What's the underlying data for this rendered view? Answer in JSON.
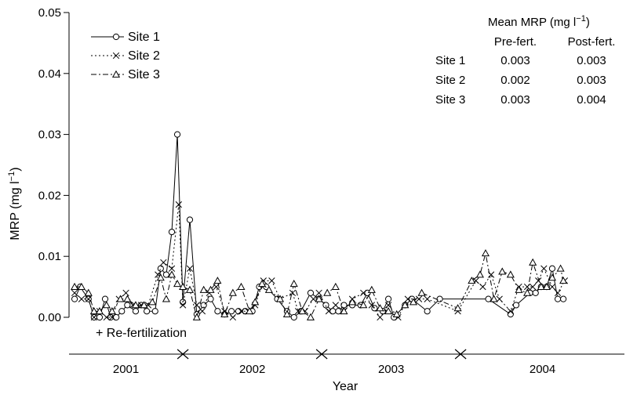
{
  "chart_data": {
    "type": "line",
    "ylabel": "MRP (mg l",
    "ylabel_sup": "−1",
    "ylabel_close": ")",
    "xlabel": "Year",
    "ylim": [
      0,
      0.05
    ],
    "yticks": [
      "0.00",
      "0.01",
      "0.02",
      "0.03",
      "0.04",
      "0.05"
    ],
    "ytick_values": [
      0,
      0.01,
      0.02,
      0.03,
      0.04,
      0.05
    ],
    "year_labels": [
      "2001",
      "2002",
      "2003",
      "2004"
    ],
    "x_range": [
      2000.68,
      2004.68
    ],
    "year_boundaries": [
      2001.5,
      2002.5,
      2003.5
    ],
    "annotation": "+ Re-fertilization",
    "grid": false,
    "legend_placement": "top-left",
    "series": [
      {
        "name": "Site 1",
        "marker": "circle",
        "line": "solid",
        "points": [
          [
            2000.72,
            0.003
          ],
          [
            2000.76,
            0.005
          ],
          [
            2000.82,
            0.003
          ],
          [
            2000.86,
            0.0
          ],
          [
            2000.9,
            0.0
          ],
          [
            2000.94,
            0.003
          ],
          [
            2000.98,
            0.0
          ],
          [
            2001.02,
            0.0
          ],
          [
            2001.06,
            0.001
          ],
          [
            2001.1,
            0.002
          ],
          [
            2001.16,
            0.001
          ],
          [
            2001.2,
            0.002
          ],
          [
            2001.24,
            0.001
          ],
          [
            2001.3,
            0.001
          ],
          [
            2001.34,
            0.008
          ],
          [
            2001.38,
            0.007
          ],
          [
            2001.42,
            0.014
          ],
          [
            2001.46,
            0.03
          ],
          [
            2001.5,
            0.0025
          ],
          [
            2001.55,
            0.016
          ],
          [
            2001.6,
            0.0005
          ],
          [
            2001.65,
            0.002
          ],
          [
            2001.7,
            0.003
          ],
          [
            2001.75,
            0.001
          ],
          [
            2001.8,
            0.0005
          ],
          [
            2001.85,
            0.001
          ],
          [
            2001.9,
            0.001
          ],
          [
            2001.95,
            0.001
          ],
          [
            2002.0,
            0.001
          ],
          [
            2002.05,
            0.005
          ],
          [
            2002.1,
            0.005
          ],
          [
            2002.18,
            0.003
          ],
          [
            2002.25,
            0.001
          ],
          [
            2002.3,
            0.0
          ],
          [
            2002.35,
            0.001
          ],
          [
            2002.42,
            0.004
          ],
          [
            2002.48,
            0.003
          ],
          [
            2002.53,
            0.002
          ],
          [
            2002.58,
            0.001
          ],
          [
            2002.62,
            0.001
          ],
          [
            2002.66,
            0.002
          ],
          [
            2002.72,
            0.002
          ],
          [
            2002.78,
            0.002
          ],
          [
            2002.83,
            0.004
          ],
          [
            2002.88,
            0.0015
          ],
          [
            2002.94,
            0.001
          ],
          [
            2002.98,
            0.003
          ],
          [
            2003.02,
            0.0
          ],
          [
            2003.1,
            0.002
          ],
          [
            2003.15,
            0.003
          ],
          [
            2003.26,
            0.001
          ],
          [
            2003.35,
            0.003
          ],
          [
            2003.7,
            0.003
          ],
          [
            2003.86,
            0.0005
          ],
          [
            2003.9,
            0.002
          ],
          [
            2004.0,
            0.004
          ],
          [
            2004.04,
            0.004
          ],
          [
            2004.08,
            0.005
          ],
          [
            2004.12,
            0.005
          ],
          [
            2004.16,
            0.008
          ],
          [
            2004.2,
            0.003
          ],
          [
            2004.24,
            0.003
          ]
        ]
      },
      {
        "name": "Site 2",
        "marker": "cross",
        "line": "dotted",
        "points": [
          [
            2000.72,
            0.004
          ],
          [
            2000.77,
            0.003
          ],
          [
            2000.82,
            0.003
          ],
          [
            2000.86,
            0.0
          ],
          [
            2000.9,
            0.001
          ],
          [
            2000.95,
            0.0
          ],
          [
            2000.99,
            0.0
          ],
          [
            2001.04,
            0.003
          ],
          [
            2001.09,
            0.004
          ],
          [
            2001.14,
            0.002
          ],
          [
            2001.2,
            0.002
          ],
          [
            2001.25,
            0.002
          ],
          [
            2001.32,
            0.007
          ],
          [
            2001.36,
            0.009
          ],
          [
            2001.42,
            0.008
          ],
          [
            2001.47,
            0.0185
          ],
          [
            2001.5,
            0.002
          ],
          [
            2001.55,
            0.008
          ],
          [
            2001.6,
            0.002
          ],
          [
            2001.64,
            0.001
          ],
          [
            2001.69,
            0.004
          ],
          [
            2001.74,
            0.005
          ],
          [
            2001.8,
            0.001
          ],
          [
            2001.86,
            0.0
          ],
          [
            2001.92,
            0.001
          ],
          [
            2001.97,
            0.001
          ],
          [
            2002.02,
            0.002
          ],
          [
            2002.08,
            0.006
          ],
          [
            2002.14,
            0.006
          ],
          [
            2002.2,
            0.003
          ],
          [
            2002.29,
            0.004
          ],
          [
            2002.33,
            0.001
          ],
          [
            2002.38,
            0.001
          ],
          [
            2002.44,
            0.003
          ],
          [
            2002.48,
            0.004
          ],
          [
            2002.55,
            0.001
          ],
          [
            2002.6,
            0.002
          ],
          [
            2002.66,
            0.001
          ],
          [
            2002.72,
            0.003
          ],
          [
            2002.8,
            0.004
          ],
          [
            2002.86,
            0.002
          ],
          [
            2002.92,
            0.0
          ],
          [
            2002.98,
            0.002
          ],
          [
            2003.05,
            0.0
          ],
          [
            2003.12,
            0.003
          ],
          [
            2003.2,
            0.003
          ],
          [
            2003.26,
            0.003
          ],
          [
            2003.48,
            0.001
          ],
          [
            2003.61,
            0.006
          ],
          [
            2003.66,
            0.005
          ],
          [
            2003.72,
            0.007
          ],
          [
            2003.78,
            0.003
          ],
          [
            2003.86,
            0.001
          ],
          [
            2003.92,
            0.005
          ],
          [
            2003.98,
            0.005
          ],
          [
            2004.02,
            0.005
          ],
          [
            2004.06,
            0.006
          ],
          [
            2004.1,
            0.008
          ],
          [
            2004.16,
            0.005
          ],
          [
            2004.2,
            0.004
          ],
          [
            2004.25,
            0.006
          ]
        ]
      },
      {
        "name": "Site 3",
        "marker": "triangle",
        "line": "dashdot",
        "points": [
          [
            2000.72,
            0.005
          ],
          [
            2000.77,
            0.005
          ],
          [
            2000.82,
            0.004
          ],
          [
            2000.86,
            0.001
          ],
          [
            2000.9,
            0.001
          ],
          [
            2000.95,
            0.002
          ],
          [
            2000.99,
            0.001
          ],
          [
            2001.05,
            0.003
          ],
          [
            2001.1,
            0.003
          ],
          [
            2001.16,
            0.002
          ],
          [
            2001.22,
            0.002
          ],
          [
            2001.28,
            0.0025
          ],
          [
            2001.34,
            0.0065
          ],
          [
            2001.38,
            0.003
          ],
          [
            2001.42,
            0.007
          ],
          [
            2001.46,
            0.0055
          ],
          [
            2001.5,
            0.005
          ],
          [
            2001.55,
            0.0045
          ],
          [
            2001.6,
            0.0
          ],
          [
            2001.65,
            0.0045
          ],
          [
            2001.7,
            0.0045
          ],
          [
            2001.75,
            0.006
          ],
          [
            2001.8,
            0.0005
          ],
          [
            2001.86,
            0.004
          ],
          [
            2001.92,
            0.005
          ],
          [
            2001.98,
            0.001
          ],
          [
            2002.02,
            0.0025
          ],
          [
            2002.07,
            0.0055
          ],
          [
            2002.12,
            0.0045
          ],
          [
            2002.2,
            0.003
          ],
          [
            2002.25,
            0.0005
          ],
          [
            2002.3,
            0.0055
          ],
          [
            2002.36,
            0.001
          ],
          [
            2002.42,
            0.0
          ],
          [
            2002.48,
            0.003
          ],
          [
            2002.54,
            0.004
          ],
          [
            2002.6,
            0.005
          ],
          [
            2002.66,
            0.001
          ],
          [
            2002.72,
            0.0025
          ],
          [
            2002.8,
            0.002
          ],
          [
            2002.86,
            0.0045
          ],
          [
            2002.92,
            0.0015
          ],
          [
            2002.98,
            0.001
          ],
          [
            2003.04,
            0.0005
          ],
          [
            2003.1,
            0.002
          ],
          [
            2003.16,
            0.0025
          ],
          [
            2003.22,
            0.004
          ],
          [
            2003.48,
            0.0015
          ],
          [
            2003.58,
            0.006
          ],
          [
            2003.64,
            0.007
          ],
          [
            2003.68,
            0.0105
          ],
          [
            2003.74,
            0.003
          ],
          [
            2003.8,
            0.0075
          ],
          [
            2003.86,
            0.007
          ],
          [
            2003.92,
            0.0045
          ],
          [
            2003.98,
            0.004
          ],
          [
            2004.02,
            0.009
          ],
          [
            2004.08,
            0.005
          ],
          [
            2004.12,
            0.005
          ],
          [
            2004.16,
            0.0065
          ],
          [
            2004.22,
            0.008
          ],
          [
            2004.24,
            0.006
          ]
        ]
      }
    ],
    "table": {
      "title": "Mean MRP (mg l",
      "title_sup": "−1",
      "title_close": ")",
      "col_headers": [
        "Pre-fert.",
        "Post-fert."
      ],
      "rows": [
        {
          "site": "Site 1",
          "pre": "0.003",
          "post": "0.003"
        },
        {
          "site": "Site 2",
          "pre": "0.002",
          "post": "0.003"
        },
        {
          "site": "Site 3",
          "pre": "0.003",
          "post": "0.004"
        }
      ]
    }
  }
}
